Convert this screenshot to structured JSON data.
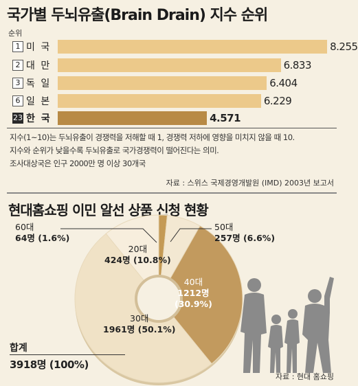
{
  "header": {
    "title": "국가별 두뇌유출(Brain Drain) 지수 순위",
    "rank_label": "순위"
  },
  "notes": {
    "line1": "지수(1~10)는 두뇌유출이 경쟁력을 저해할 때 1, 경쟁력 저하에 영향을 미치지 않을 때 10.",
    "line2": "지수와 순위가 낮을수록 두뇌유출로 국가경쟁력이 떨어진다는 의미.",
    "line3": "조사대상국은 인구 2000만 명 이상 30개국",
    "source": "자료 : 스위스 국제경영개발원 (IMD)  2003년 보고서"
  },
  "pie_section": {
    "title": "현대홈쇼핑 이민 알선 상품 신청 현황",
    "total_label": "합계",
    "total_value": "3918명 (100%)",
    "source": "자료 : 현대 홈쇼핑",
    "labels": [
      {
        "name": "60대",
        "count": "64명 (1.6%)"
      },
      {
        "name": "50대",
        "count": "257명 (6.6%)"
      },
      {
        "name": "40대",
        "count": "1212명",
        "pct": "(30.9%)"
      },
      {
        "name": "30대",
        "count": "1961명 (50.1%)"
      },
      {
        "name": "20대",
        "count": "424명 (10.8%)"
      }
    ]
  },
  "colors": {
    "bar": "#ecc98a",
    "bar_highlight": "#b88a45",
    "pie_60s": "#c49a55",
    "pie_50s": "#f3e8d2",
    "pie_40s": "#c29a5e",
    "pie_30s": "#f0e2c6",
    "pie_20s": "#f7eedd",
    "background": "#f6f0e2"
  },
  "chart_data": [
    {
      "type": "bar",
      "title": "국가별 두뇌유출(Brain Drain) 지수 순위",
      "categories": [
        "미 국",
        "대 만",
        "독 일",
        "일 본",
        "한 국"
      ],
      "ranks": [
        "1",
        "2",
        "3",
        "6",
        "23"
      ],
      "values": [
        8.255,
        6.833,
        6.404,
        6.229,
        4.571
      ],
      "value_labels": [
        "8.255",
        "6.833",
        "6.404",
        "6.229",
        "4.571"
      ],
      "highlight": "한 국",
      "xlim": [
        0,
        10
      ]
    },
    {
      "type": "pie",
      "title": "현대홈쇼핑 이민 알선 상품 신청 현황",
      "categories": [
        "60대",
        "50대",
        "40대",
        "30대",
        "20대"
      ],
      "values": [
        64,
        257,
        1212,
        1961,
        424
      ],
      "percentages": [
        1.6,
        6.6,
        30.9,
        50.1,
        10.8
      ],
      "total": 3918
    }
  ]
}
